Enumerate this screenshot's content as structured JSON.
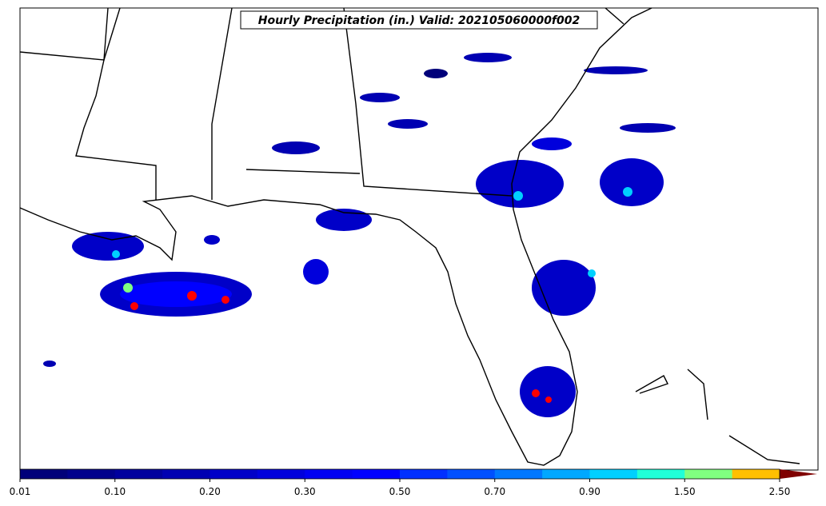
{
  "title": "Hourly Precipitation (in.) Valid: 202105060000f002",
  "colorbar": {
    "labels": [
      "0.01",
      "0.10",
      "0.20",
      "0.30",
      "0.50",
      "0.70",
      "0.90",
      "1.50",
      "2.50"
    ],
    "colors": [
      "#00007a",
      "#00008c",
      "#00009e",
      "#0000b2",
      "#0000c8",
      "#0000dc",
      "#0000f2",
      "#0000ff",
      "#0030ff",
      "#0050ff",
      "#0078ff",
      "#00a8ff",
      "#00d0ff",
      "#20ffd8",
      "#80ff80",
      "#ffc000",
      "#ff0000"
    ],
    "extend_color": "#7f0000"
  }
}
